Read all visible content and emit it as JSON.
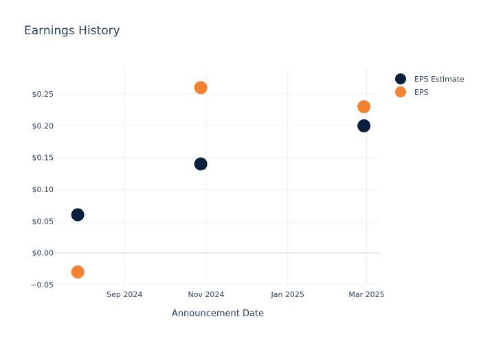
{
  "chart_data": {
    "type": "scatter",
    "title": "Earnings History",
    "xlabel": "Announcement Date",
    "ylabel": "",
    "x_tick_labels": [
      {
        "date": "2024-09-01",
        "label": "Sep 2024"
      },
      {
        "date": "2024-11-01",
        "label": "Nov 2024"
      },
      {
        "date": "2025-01-01",
        "label": "Jan 2025"
      },
      {
        "date": "2025-03-01",
        "label": "Mar 2025"
      }
    ],
    "y_ticks": [
      {
        "value": -0.05,
        "label": "−0.05"
      },
      {
        "value": 0.0,
        "label": "$0.00"
      },
      {
        "value": 0.05,
        "label": "$0.05"
      },
      {
        "value": 0.1,
        "label": "$0.10"
      },
      {
        "value": 0.15,
        "label": "$0.15"
      },
      {
        "value": 0.2,
        "label": "$0.20"
      },
      {
        "value": 0.25,
        "label": "$0.25"
      }
    ],
    "xlim": [
      "2024-07-11",
      "2025-03-11"
    ],
    "ylim": [
      -0.05,
      0.29
    ],
    "grid": true,
    "legend_position": "top-right",
    "series": [
      {
        "name": "EPS Estimate",
        "color": "#0b1f3f",
        "points": [
          {
            "x": "2024-07-28",
            "y": 0.06
          },
          {
            "x": "2024-10-28",
            "y": 0.14
          },
          {
            "x": "2025-02-27",
            "y": 0.2
          }
        ]
      },
      {
        "name": "EPS",
        "color": "#f58231",
        "points": [
          {
            "x": "2024-07-28",
            "y": -0.03
          },
          {
            "x": "2024-10-28",
            "y": 0.26
          },
          {
            "x": "2025-02-27",
            "y": 0.23
          }
        ]
      }
    ]
  }
}
